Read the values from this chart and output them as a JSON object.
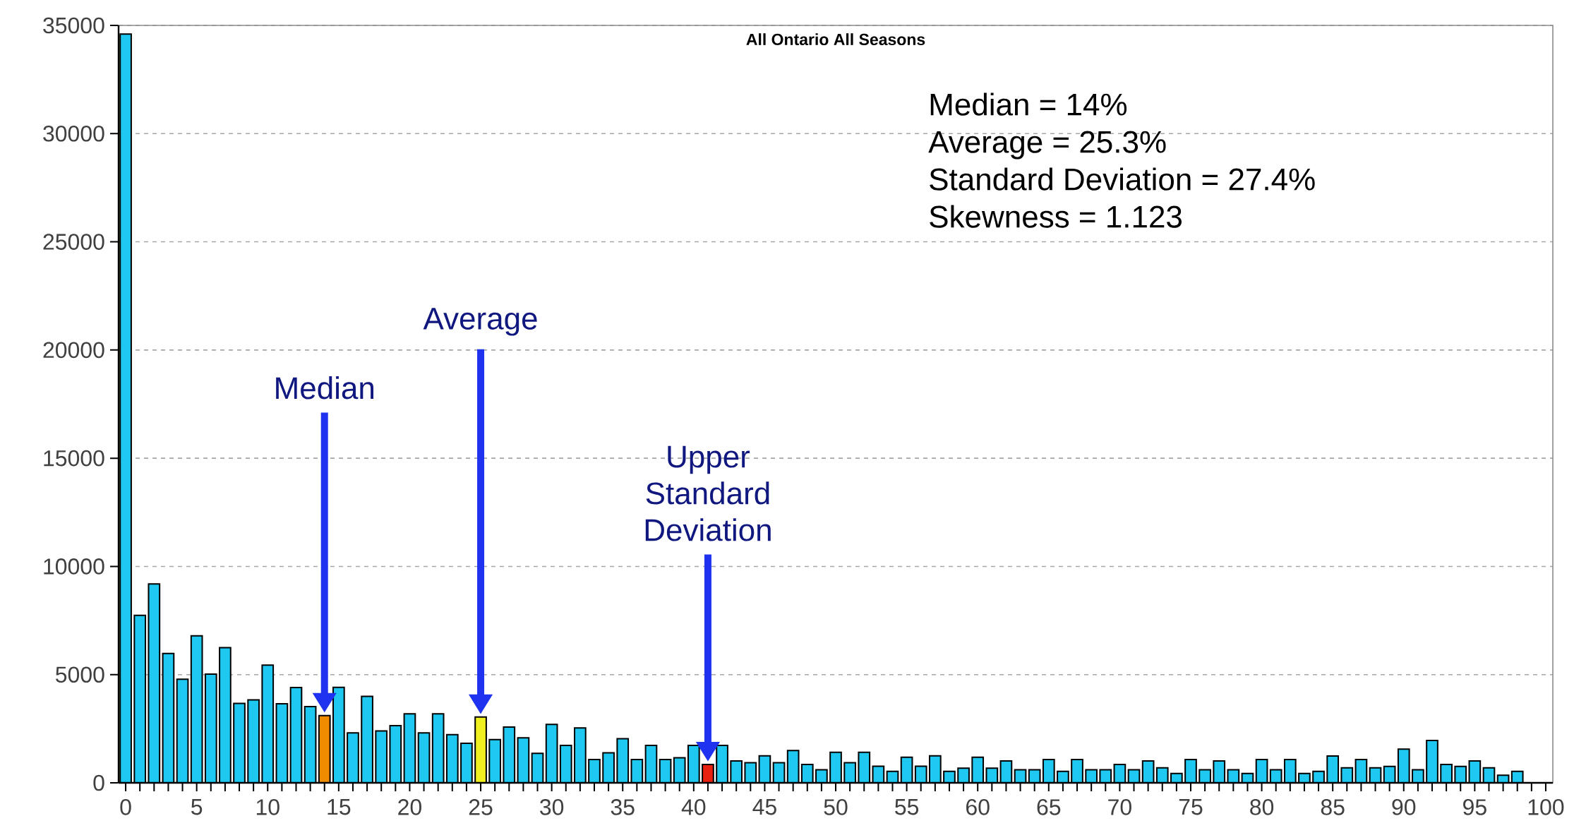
{
  "chart_data": {
    "type": "bar",
    "title": "All Ontario All Seasons",
    "x": [
      0,
      1,
      2,
      3,
      4,
      5,
      6,
      7,
      8,
      9,
      10,
      11,
      12,
      13,
      14,
      15,
      16,
      17,
      18,
      19,
      20,
      21,
      22,
      23,
      24,
      25,
      26,
      27,
      28,
      29,
      30,
      31,
      32,
      33,
      34,
      35,
      36,
      37,
      38,
      39,
      40,
      41,
      42,
      43,
      44,
      45,
      46,
      47,
      48,
      49,
      50,
      51,
      52,
      53,
      54,
      55,
      56,
      57,
      58,
      59,
      60,
      61,
      62,
      63,
      64,
      65,
      66,
      67,
      68,
      69,
      70,
      71,
      72,
      73,
      74,
      75,
      76,
      77,
      78,
      79,
      80,
      81,
      82,
      83,
      84,
      85,
      86,
      87,
      88,
      89,
      90,
      91,
      92,
      93,
      94,
      95,
      96,
      97,
      98
    ],
    "values": [
      34600,
      7740,
      9190,
      5980,
      4790,
      6790,
      5020,
      6250,
      3670,
      3830,
      5440,
      3650,
      4400,
      3520,
      3110,
      4410,
      2310,
      4000,
      2400,
      2640,
      3190,
      2310,
      3190,
      2230,
      1830,
      3040,
      2000,
      2580,
      2080,
      1360,
      2700,
      1730,
      2540,
      1080,
      1390,
      2040,
      1080,
      1730,
      1080,
      1160,
      1730,
      850,
      1730,
      1010,
      930,
      1250,
      930,
      1490,
      850,
      600,
      1410,
      930,
      1410,
      770,
      530,
      1180,
      770,
      1250,
      530,
      680,
      1180,
      680,
      1010,
      600,
      600,
      1080,
      530,
      1080,
      600,
      600,
      850,
      600,
      1010,
      690,
      430,
      1080,
      600,
      1010,
      600,
      430,
      1080,
      600,
      1080,
      430,
      530,
      1240,
      690,
      1080,
      690,
      760,
      1560,
      600,
      1960,
      850,
      760,
      1010,
      690,
      350,
      530
    ],
    "colors": [
      "#1ec8f0",
      "#1ec8f0",
      "#1ec8f0",
      "#1ec8f0",
      "#1ec8f0",
      "#1ec8f0",
      "#1ec8f0",
      "#1ec8f0",
      "#1ec8f0",
      "#1ec8f0",
      "#1ec8f0",
      "#1ec8f0",
      "#1ec8f0",
      "#1ec8f0",
      "#f08c00",
      "#1ec8f0",
      "#1ec8f0",
      "#1ec8f0",
      "#1ec8f0",
      "#1ec8f0",
      "#1ec8f0",
      "#1ec8f0",
      "#1ec8f0",
      "#1ec8f0",
      "#1ec8f0",
      "#f0f020",
      "#1ec8f0",
      "#1ec8f0",
      "#1ec8f0",
      "#1ec8f0",
      "#1ec8f0",
      "#1ec8f0",
      "#1ec8f0",
      "#1ec8f0",
      "#1ec8f0",
      "#1ec8f0",
      "#1ec8f0",
      "#1ec8f0",
      "#1ec8f0",
      "#1ec8f0",
      "#1ec8f0",
      "#e82010",
      "#1ec8f0",
      "#1ec8f0",
      "#1ec8f0",
      "#1ec8f0",
      "#1ec8f0",
      "#1ec8f0",
      "#1ec8f0",
      "#1ec8f0",
      "#1ec8f0",
      "#1ec8f0",
      "#1ec8f0",
      "#1ec8f0",
      "#1ec8f0",
      "#1ec8f0",
      "#1ec8f0",
      "#1ec8f0",
      "#1ec8f0",
      "#1ec8f0",
      "#1ec8f0",
      "#1ec8f0",
      "#1ec8f0",
      "#1ec8f0",
      "#1ec8f0",
      "#1ec8f0",
      "#1ec8f0",
      "#1ec8f0",
      "#1ec8f0",
      "#1ec8f0",
      "#1ec8f0",
      "#1ec8f0",
      "#1ec8f0",
      "#1ec8f0",
      "#1ec8f0",
      "#1ec8f0",
      "#1ec8f0",
      "#1ec8f0",
      "#1ec8f0",
      "#1ec8f0",
      "#1ec8f0",
      "#1ec8f0",
      "#1ec8f0",
      "#1ec8f0",
      "#1ec8f0",
      "#1ec8f0",
      "#1ec8f0",
      "#1ec8f0",
      "#1ec8f0",
      "#1ec8f0",
      "#1ec8f0",
      "#1ec8f0",
      "#1ec8f0",
      "#1ec8f0",
      "#1ec8f0",
      "#1ec8f0",
      "#1ec8f0",
      "#1ec8f0",
      "#1ec8f0"
    ],
    "xlim": [
      -0.5,
      100.5
    ],
    "xticks": [
      0,
      5,
      10,
      15,
      20,
      25,
      30,
      35,
      40,
      45,
      50,
      55,
      60,
      65,
      70,
      75,
      80,
      85,
      90,
      95,
      100
    ],
    "ylim": [
      0,
      35000
    ],
    "yticks": [
      0,
      5000,
      10000,
      15000,
      20000,
      25000,
      30000,
      35000
    ],
    "grid": "y",
    "annotations": [
      "Median",
      "Average",
      "Upper Standard Deviation",
      "Median = 14%",
      "Average = 25.3%",
      "Standard Deviation = 27.4%",
      "Skewness = 1.123"
    ]
  }
}
